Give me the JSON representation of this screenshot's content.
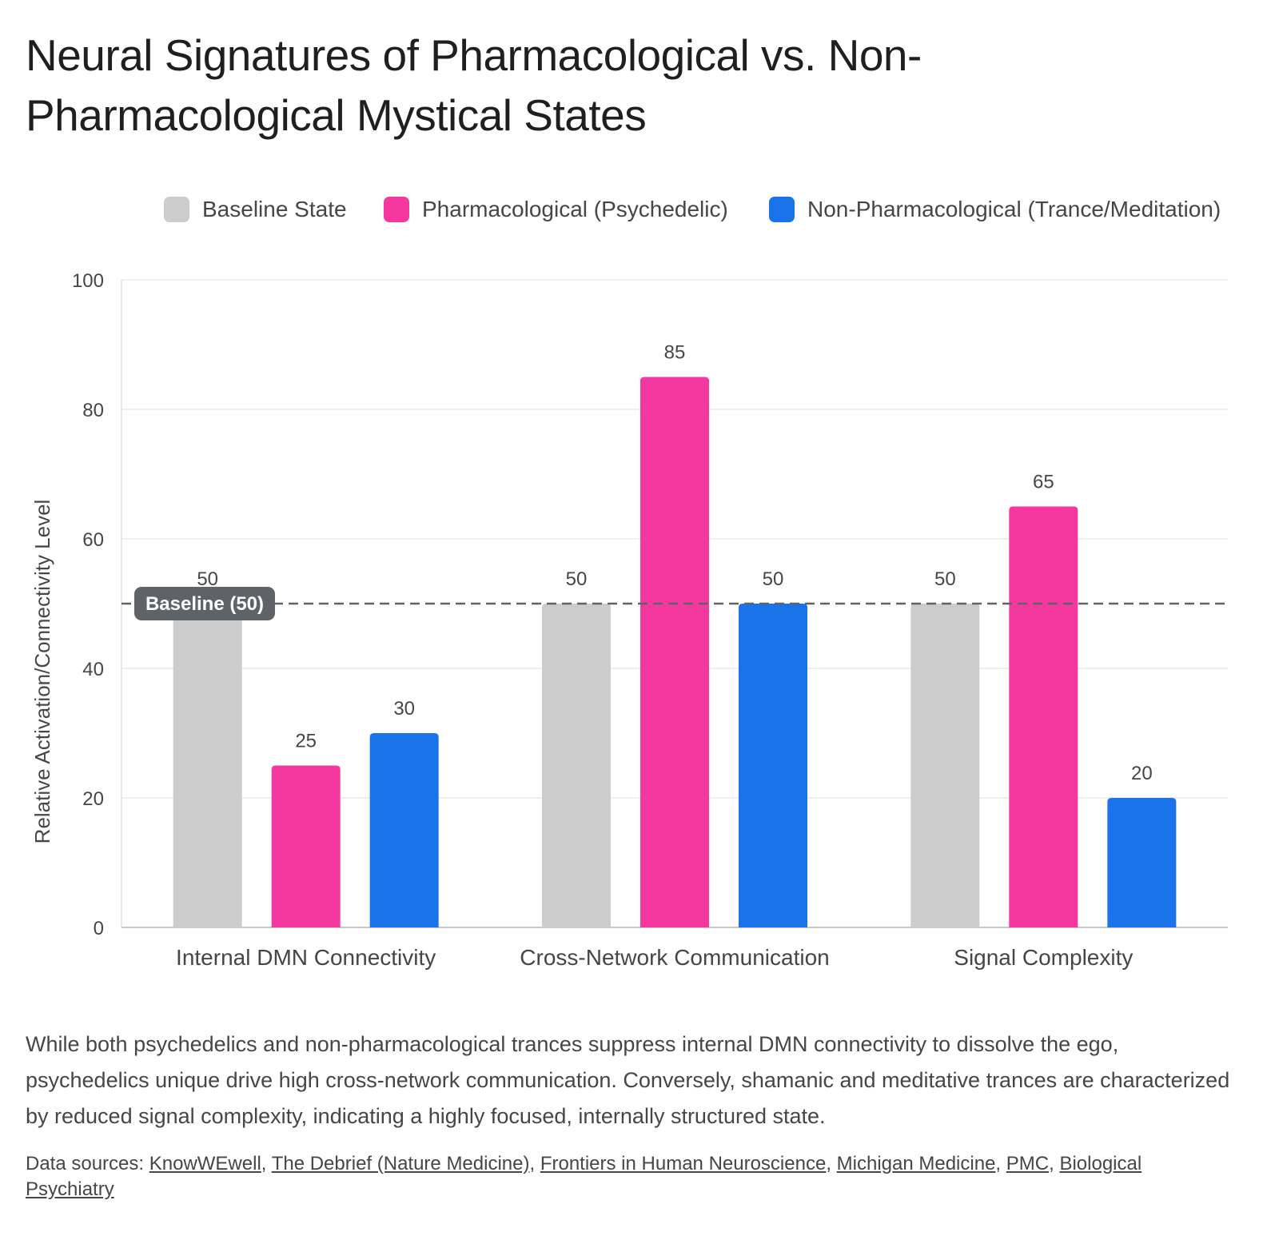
{
  "title": "Neural Signatures of Pharmacological vs. Non-Pharmacological Mystical States",
  "caption": "While both psychedelics and non-pharmacological trances suppress internal DMN connectivity to dissolve the ego, psychedelics unique drive high cross-network communication. Conversely, shamanic and meditative trances are characterized by reduced signal complexity, indicating a highly focused, internally structured state.",
  "sources": {
    "prefix": "Data sources: ",
    "links": [
      "KnowWEwell",
      "The Debrief (Nature Medicine)",
      "Frontiers in Human Neuroscience",
      "Michigan Medicine",
      "PMC",
      "Biological Psychiatry"
    ]
  },
  "chart_data": {
    "type": "bar",
    "title": "Neural Signatures of Pharmacological vs. Non-Pharmacological Mystical States",
    "xlabel": "",
    "ylabel": "Relative Activation/Connectivity Level",
    "categories": [
      "Internal DMN Connectivity",
      "Cross-Network Communication",
      "Signal Complexity"
    ],
    "series": [
      {
        "name": "Baseline State",
        "values": [
          50,
          50,
          50
        ],
        "color": "#cccccc"
      },
      {
        "name": "Pharmacological (Psychedelic)",
        "values": [
          25,
          85,
          65
        ],
        "color": "#f538a0"
      },
      {
        "name": "Non-Pharmacological (Trance/Meditation)",
        "values": [
          30,
          50,
          20
        ],
        "color": "#1a73e8"
      }
    ],
    "ylim": [
      0,
      100
    ],
    "yticks": [
      0,
      20,
      40,
      60,
      80,
      100
    ],
    "grid": true,
    "legend_position": "top",
    "reference_line": {
      "value": 50,
      "label": "Baseline (50)",
      "style": "dashed",
      "color": "#5f6368"
    }
  }
}
